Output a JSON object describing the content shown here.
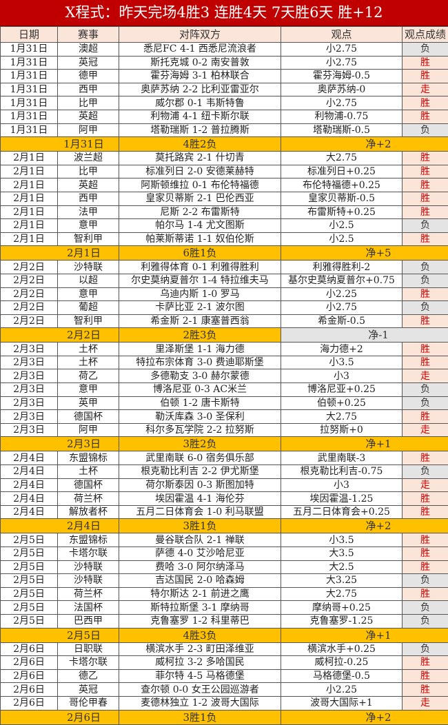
{
  "title": "X程式：昨天完场4胜3  连胜4天  7天胜6天  胜+12",
  "headers": [
    "日期",
    "赛事",
    "对阵双方",
    "观点",
    "观点成绩"
  ],
  "colors": {
    "title_bg": "#c00000",
    "summary_bg": "#ffc000",
    "win_text": "#d00000",
    "win_bg": "#fbe4d8",
    "loss_bg": "#e4e4e4"
  },
  "groups": [
    {
      "rows": [
        [
          "1月31日",
          "澳超",
          "悉尼FC 4-1 西悉尼流浪者",
          "小2.75",
          "负"
        ],
        [
          "1月31日",
          "英冠",
          "斯托克城 0-2 南安普敦",
          "小2.75",
          "胜"
        ],
        [
          "1月31日",
          "德甲",
          "霍芬海姆 3-1 柏林联合",
          "霍芬海姆-0.5",
          "胜"
        ],
        [
          "1月31日",
          "西甲",
          "奥萨苏纳 2-2 比利亚雷亚尔",
          "奥萨苏纳-0",
          "走"
        ],
        [
          "1月31日",
          "比甲",
          "威尔郡 0-1 韦斯特鲁",
          "小2.75",
          "胜"
        ],
        [
          "1月31日",
          "英超",
          "利物浦 4-1 纽卡斯尔联",
          "利物浦-0.75",
          "胜"
        ],
        [
          "1月31日",
          "阿甲",
          "塔勒瑞斯 1-2 普拉腾斯",
          "塔勒瑞斯-0.5",
          "负"
        ]
      ],
      "summary": {
        "date": "1月31日",
        "record": "4胜2负",
        "net": "净+2"
      }
    },
    {
      "rows": [
        [
          "2月1日",
          "波兰超",
          "莫托路宾 2-1 什切青",
          "大2.75",
          "胜"
        ],
        [
          "2月1日",
          "比甲",
          "标准列日 2-0 安德莱赫特",
          "标准列日+0.25",
          "胜"
        ],
        [
          "2月1日",
          "英超",
          "阿斯顿维拉 0-1 布伦特福德",
          "布伦特福德+0.25",
          "胜"
        ],
        [
          "2月1日",
          "西甲",
          "皇家贝蒂斯 2-1 巴伦西亚",
          "皇家贝蒂斯-0.5",
          "胜"
        ],
        [
          "2月1日",
          "法甲",
          "尼斯 2-2 布雷斯特",
          "布雷斯特+0.25",
          "胜"
        ],
        [
          "2月1日",
          "意甲",
          "帕尔马 1-4 尤文图斯",
          "小2.5",
          "负"
        ],
        [
          "2月1日",
          "智利甲",
          "帕莱斯蒂诺 1-1 奴伯伦斯",
          "小2.5",
          "胜"
        ]
      ],
      "summary": {
        "date": "2月1日",
        "record": "6胜1负",
        "net": "净+5"
      }
    },
    {
      "rows": [
        [
          "2月2日",
          "沙特联",
          "利雅得体育 0-1 利雅得胜利",
          "利雅得胜利-2",
          "负"
        ],
        [
          "2月2日",
          "以超",
          "尔史莫纳夏普尔 1-4 特拉维夫马",
          "基尔史莫纳夏普尔+0.75",
          "负"
        ],
        [
          "2月2日",
          "意甲",
          "乌迪内斯 1-0 罗马",
          "小2.25",
          "胜"
        ],
        [
          "2月2日",
          "葡超",
          "卡萨比亚 2-1 波尔图",
          "小2.75",
          "负"
        ],
        [
          "2月2日",
          "智利甲",
          "希金斯 2-1 康塞普西翁",
          "希金斯-0.5",
          "胜"
        ]
      ],
      "summary": {
        "date": "2月2日",
        "record": "2胜3负",
        "net": "净-1",
        "net_gray": true
      }
    },
    {
      "rows": [
        [
          "2月3日",
          "土杯",
          "里泽斯堡 1-1 海力德",
          "海力德+2",
          "胜"
        ],
        [
          "2月3日",
          "土杯",
          "特拉布宗体育 3-0 费迪耶斯堡",
          "小3.5",
          "胜"
        ],
        [
          "2月3日",
          "荷乙",
          "多德勒支 3-0 赫尔蒙德",
          "小3",
          "走"
        ],
        [
          "2月3日",
          "意甲",
          "博洛尼亚 0-3 AC米兰",
          "博洛尼亚+0.25",
          "负"
        ],
        [
          "2月3日",
          "英甲",
          "伯顿 1-2 唐卡斯特",
          "伯顿+0.25",
          "负"
        ],
        [
          "2月3日",
          "德国杯",
          "勒沃库森 3-0 圣保利",
          "大2.75",
          "胜"
        ],
        [
          "2月3日",
          "阿甲",
          "科尔多瓦学院 2-2 拉努斯",
          "拉努斯+0",
          "走"
        ]
      ],
      "summary": {
        "date": "2月3日",
        "record": "3胜2负",
        "net": "净+1"
      }
    },
    {
      "rows": [
        [
          "2月4日",
          "东盟锦标",
          "武里南联 6-0 宿务俱乐部",
          "武里南联-3",
          "胜"
        ],
        [
          "2月4日",
          "土杯",
          "根克勒比利吉 2-2 伊尤斯堡",
          "根克勒比利吉-0.75",
          "负"
        ],
        [
          "2月4日",
          "德国杯",
          "荷尔斯泰因 0-3 斯图加特",
          "小3",
          "走"
        ],
        [
          "2月4日",
          "荷兰杯",
          "埃因霍温 4-1 海伦芬",
          "埃因霍温-1.25",
          "胜"
        ],
        [
          "2月4日",
          "解放者杯",
          "五月二日体育会 1-0 利马联盟",
          "五月二日体育会+0.25",
          "胜"
        ]
      ],
      "summary": {
        "date": "2月4日",
        "record": "3胜1负",
        "net": "净+2"
      }
    },
    {
      "rows": [
        [
          "2月5日",
          "东盟锦标",
          "曼谷联合队 2-1 禅联",
          "小3.5",
          "胜"
        ],
        [
          "2月5日",
          "卡塔尔联",
          "萨德 4-0 艾沙哈尼亚",
          "大3.5",
          "胜"
        ],
        [
          "2月5日",
          "沙特联",
          "费哈 3-0 阿尔纳泽马",
          "大2.5",
          "胜"
        ],
        [
          "2月5日",
          "沙特联",
          "吉达国民 2-0 哈森姆",
          "大3.25",
          "负"
        ],
        [
          "2月5日",
          "荷兰杯",
          "特尔斯达 2-1 前进之鹰",
          "大2.75",
          "胜"
        ],
        [
          "2月5日",
          "法国杯",
          "斯特拉斯堡 3-1 摩纳哥",
          "摩纳哥+0.25",
          "负"
        ],
        [
          "2月5日",
          "巴西甲",
          "克鲁塞罗 1-2 科里蒂巴",
          "克鲁塞罗-1.25",
          "负"
        ]
      ],
      "summary": {
        "date": "2月5日",
        "record": "4胜3负",
        "net": "净+1"
      }
    },
    {
      "rows": [
        [
          "2月6日",
          "日职联",
          "横滨水手 2-3 町田泽维亚",
          "横滨水手+0.25",
          "负"
        ],
        [
          "2月6日",
          "卡塔尔联",
          "威柯拉 3-2 多哈国民",
          "威柯拉-0.25",
          "胜"
        ],
        [
          "2月6日",
          "德乙",
          "菲尔特 4-5 马格德堡",
          "马格德堡-0.5",
          "胜"
        ],
        [
          "2月6日",
          "英冠",
          "查尔顿 0-0 女王公园巡游者",
          "小2.25",
          "胜"
        ],
        [
          "2月6日",
          "哥伦甲春",
          "麦德林独立 1-2 波哥大国际",
          "波哥大国际+1",
          "走"
        ]
      ],
      "summary": {
        "date": "2月6日",
        "record": "3胜1负",
        "net": "净+2"
      }
    }
  ]
}
